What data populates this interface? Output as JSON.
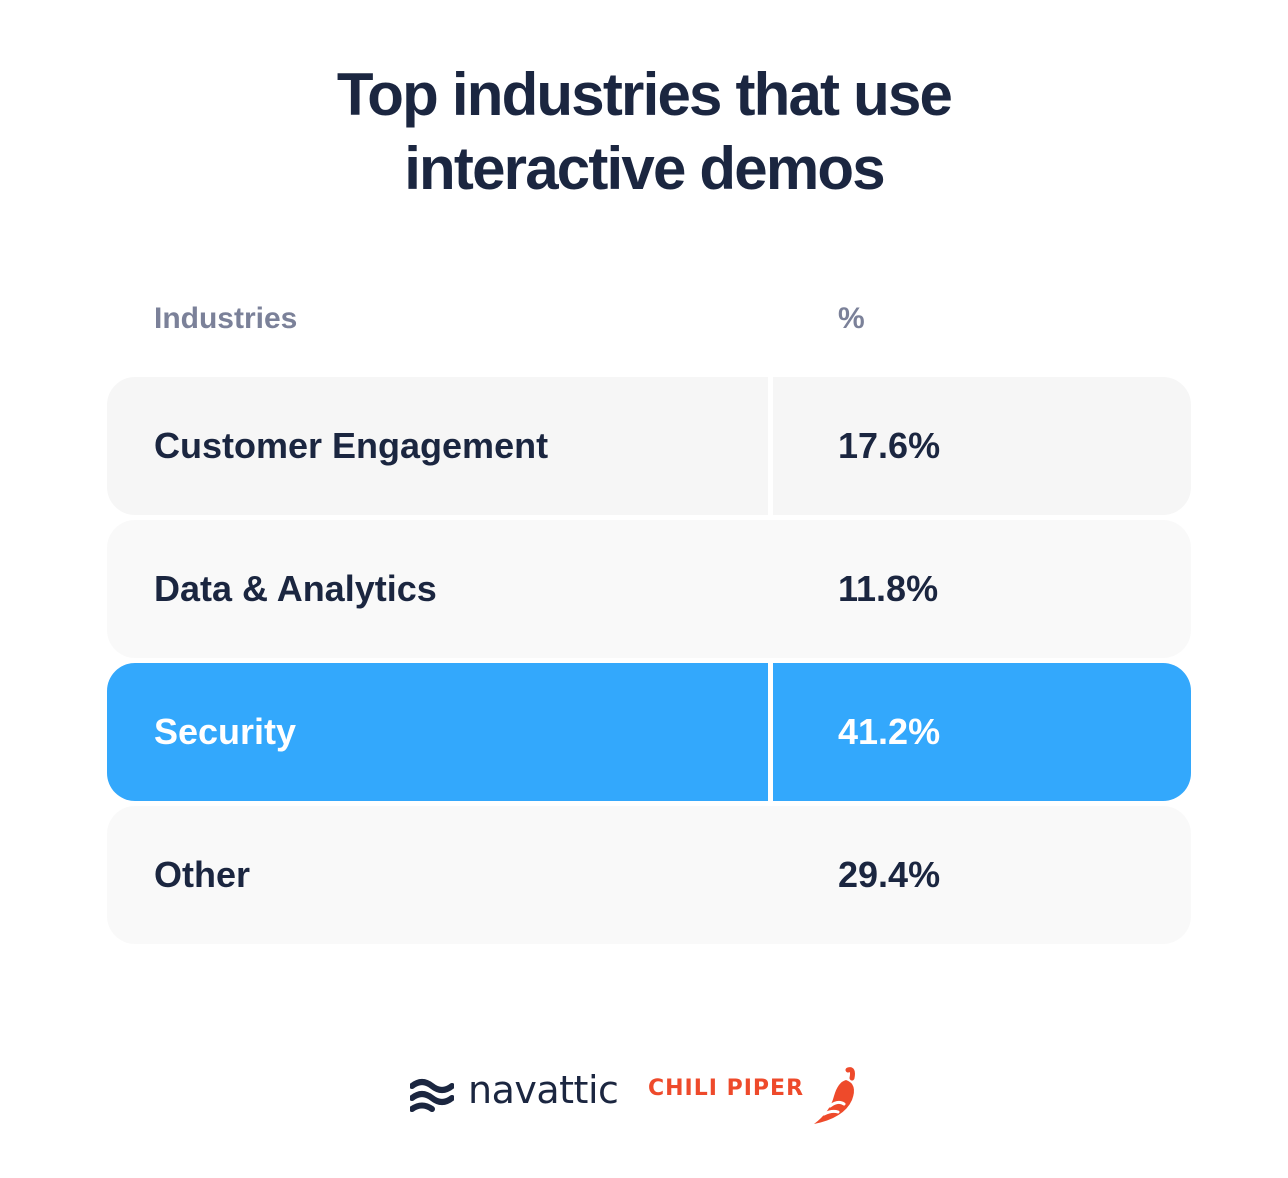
{
  "title_lines": [
    "Top industries that use",
    "interactive demos"
  ],
  "chart_data": {
    "type": "table",
    "columns": [
      "Industries",
      "%"
    ],
    "rows": [
      {
        "industry": "Customer Engagement",
        "percent": "17.6%",
        "value": 17.6,
        "highlighted": false
      },
      {
        "industry": "Data & Analytics",
        "percent": "11.8%",
        "value": 11.8,
        "highlighted": false
      },
      {
        "industry": "Security",
        "percent": "41.2%",
        "value": 41.2,
        "highlighted": true
      },
      {
        "industry": "Other",
        "percent": "29.4%",
        "value": 29.4,
        "highlighted": false
      }
    ]
  },
  "colors": {
    "title": "#1b2640",
    "header": "#7b8199",
    "row_bg_1": "#f6f6f6",
    "row_bg_2": "#f9f9f9",
    "highlight": "#33a8fc",
    "chili": "#ee4a2b"
  },
  "logos": {
    "navattic": "navattic",
    "chili_piper": "CHILI PIPER"
  }
}
